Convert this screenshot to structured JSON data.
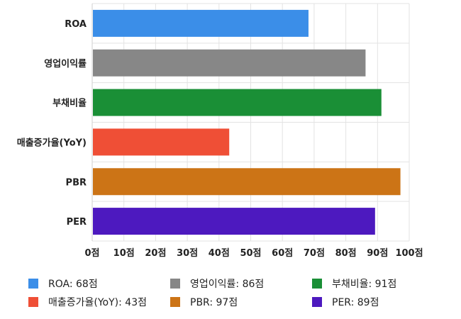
{
  "chart_data": {
    "type": "bar",
    "orientation": "horizontal",
    "categories": [
      "ROA",
      "영업이익률",
      "부채비율",
      "매출증가율(YoY)",
      "PBR",
      "PER"
    ],
    "values": [
      68,
      86,
      91,
      43,
      97,
      89
    ],
    "colors": [
      "#3b8ee8",
      "#878787",
      "#1a8f36",
      "#ef4f36",
      "#cc7416",
      "#4d19bf"
    ],
    "xlim": [
      0,
      100
    ],
    "xticks": [
      0,
      10,
      20,
      30,
      40,
      50,
      60,
      70,
      80,
      90,
      100
    ],
    "tick_suffix": "점",
    "grid": true,
    "legend": {
      "position": "bottom",
      "items": [
        {
          "label": "ROA: 68점",
          "color": "#3b8ee8"
        },
        {
          "label": "영업이익률: 86점",
          "color": "#878787"
        },
        {
          "label": "부채비율: 91점",
          "color": "#1a8f36"
        },
        {
          "label": "매출증가율(YoY): 43점",
          "color": "#ef4f36"
        },
        {
          "label": "PBR: 97점",
          "color": "#cc7416"
        },
        {
          "label": "PER: 89점",
          "color": "#4d19bf"
        }
      ]
    }
  }
}
